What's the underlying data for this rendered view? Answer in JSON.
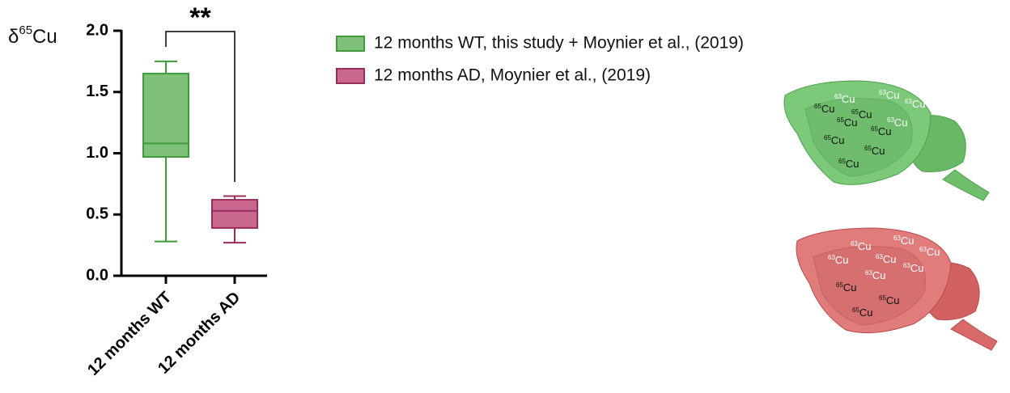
{
  "chart_data": {
    "type": "box",
    "ylabel": {
      "symbol": "δ",
      "sup": "65",
      "element": "Cu"
    },
    "categories": [
      "12 months WT",
      "12 months AD"
    ],
    "ylim": [
      0,
      2
    ],
    "yticks": [
      {
        "value": 0,
        "label": "0.0"
      },
      {
        "value": 0.5,
        "label": "0.5"
      },
      {
        "value": 1,
        "label": "1.0"
      },
      {
        "value": 1.5,
        "label": "1.5"
      },
      {
        "value": 2,
        "label": "2.0"
      }
    ],
    "series": [
      {
        "name": "12 months WT, this study + Moynier et al., (2019)",
        "color": "#7fc17b",
        "edge": "#3f9a3c",
        "min": 0.28,
        "q1": 0.97,
        "median": 1.08,
        "q3": 1.65,
        "max": 1.75
      },
      {
        "name": "12 months AD, Moynier et al., (2019)",
        "color": "#c9678f",
        "edge": "#9b2d5b",
        "min": 0.27,
        "q1": 0.39,
        "median": 0.53,
        "q3": 0.62,
        "max": 0.65
      }
    ],
    "significance": "**"
  },
  "brains": [
    {
      "labels": [
        {
          "mass": "63",
          "element": "Cu"
        },
        {
          "mass": "63",
          "element": "Cu"
        },
        {
          "mass": "63",
          "element": "Cu"
        },
        {
          "mass": "65",
          "element": "Cu"
        },
        {
          "mass": "65",
          "element": "Cu"
        },
        {
          "mass": "65",
          "element": "Cu"
        },
        {
          "mass": "63",
          "element": "Cu"
        },
        {
          "mass": "65",
          "element": "Cu"
        },
        {
          "mass": "65",
          "element": "Cu"
        },
        {
          "mass": "65",
          "element": "Cu"
        },
        {
          "mass": "65",
          "element": "Cu"
        }
      ]
    },
    {
      "labels": [
        {
          "mass": "63",
          "element": "Cu"
        },
        {
          "mass": "63",
          "element": "Cu"
        },
        {
          "mass": "63",
          "element": "Cu"
        },
        {
          "mass": "63",
          "element": "Cu"
        },
        {
          "mass": "63",
          "element": "Cu"
        },
        {
          "mass": "63",
          "element": "Cu"
        },
        {
          "mass": "63",
          "element": "Cu"
        },
        {
          "mass": "65",
          "element": "Cu"
        },
        {
          "mass": "65",
          "element": "Cu"
        },
        {
          "mass": "65",
          "element": "Cu"
        }
      ]
    }
  ]
}
